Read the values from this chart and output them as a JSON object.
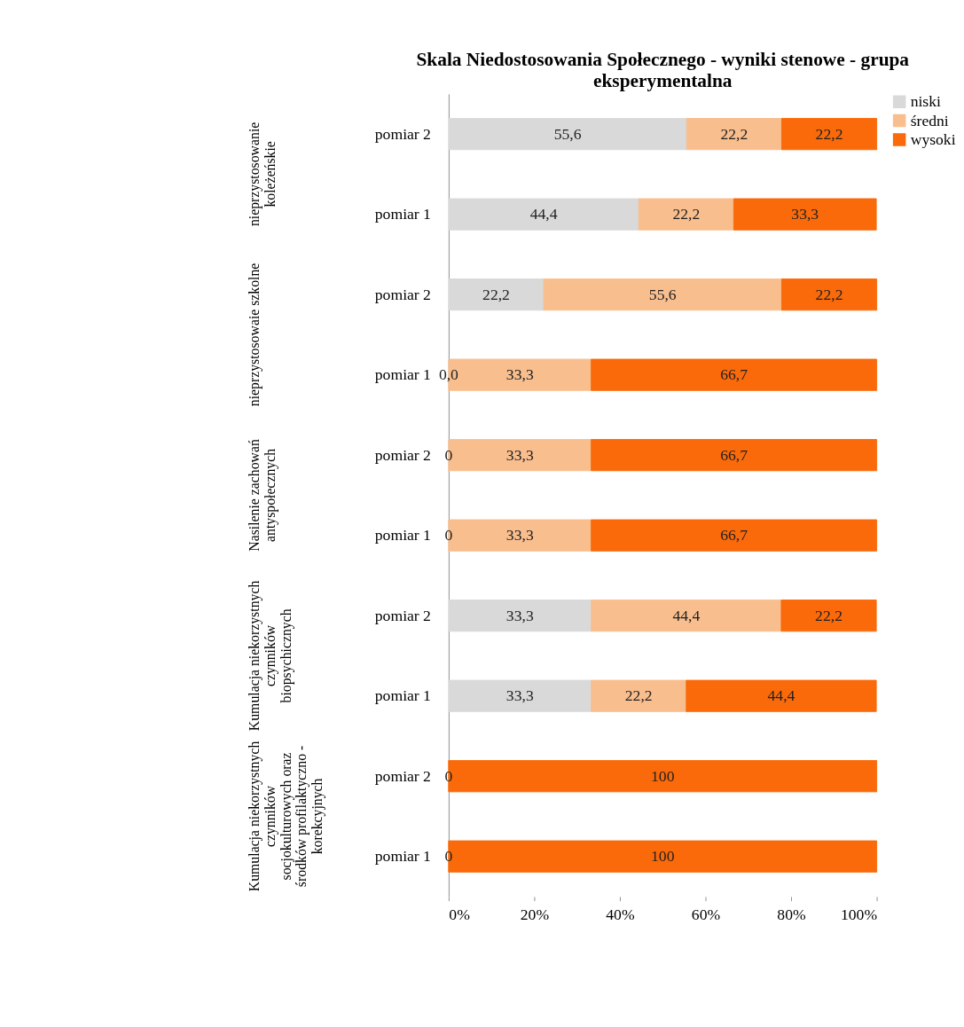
{
  "chart_data": {
    "type": "bar",
    "orientation": "horizontal",
    "stacked": true,
    "title": "Skala Niedostosowania Społecznego - wyniki stenowe - grupa eksperymentalna",
    "categories": [
      "pomiar 2",
      "pomiar 1",
      "pomiar 2",
      "pomiar 1",
      "pomiar 2",
      "pomiar 1",
      "pomiar 2",
      "pomiar 1",
      "pomiar 2",
      "pomiar 1"
    ],
    "annotations": [
      "nieprzystosowanie koleżeńskie",
      "nieprzystosowaie szkolne",
      "Nasilenie zachowań antyspołecznych",
      "Kumulacja niekorzystnych czynników biopsychicznych",
      "Kumulacja niekorzystnych czynników socjokulturowych oraz środków profilaktyczno - korekcyjnych"
    ],
    "series": [
      {
        "name": "niski",
        "color": "#d9d9d9",
        "values": [
          55.6,
          44.4,
          22.2,
          0,
          0,
          0,
          33.3,
          33.3,
          0,
          0
        ],
        "value_labels": [
          "55,6",
          "44,4",
          "22,2",
          "0,0",
          "0",
          "0",
          "33,3",
          "33,3",
          "0",
          "0"
        ]
      },
      {
        "name": "średni",
        "color": "#f9be8e",
        "values": [
          22.2,
          22.2,
          55.6,
          33.3,
          33.3,
          33.3,
          44.4,
          22.2,
          0,
          0
        ],
        "value_labels": [
          "22,2",
          "22,2",
          "55,6",
          "33,3",
          "33,3",
          "33,3",
          "44,4",
          "22,2",
          null,
          null
        ]
      },
      {
        "name": "wysoki",
        "color": "#fa6a0a",
        "values": [
          22.2,
          33.3,
          22.2,
          66.7,
          66.7,
          66.7,
          22.2,
          44.4,
          100,
          100
        ],
        "value_labels": [
          "22,2",
          "33,3",
          "22,2",
          "66,7",
          "66,7",
          "66,7",
          "22,2",
          "44,4",
          "100",
          "100"
        ]
      }
    ],
    "xlim": [
      0,
      100
    ],
    "xticks": [
      {
        "value": 0,
        "label": "0%"
      },
      {
        "value": 20,
        "label": "20%"
      },
      {
        "value": 40,
        "label": "40%"
      },
      {
        "value": 60,
        "label": "60%"
      },
      {
        "value": 80,
        "label": "80%"
      },
      {
        "value": 100,
        "label": "100%"
      }
    ],
    "legend": "right",
    "grid": false
  }
}
